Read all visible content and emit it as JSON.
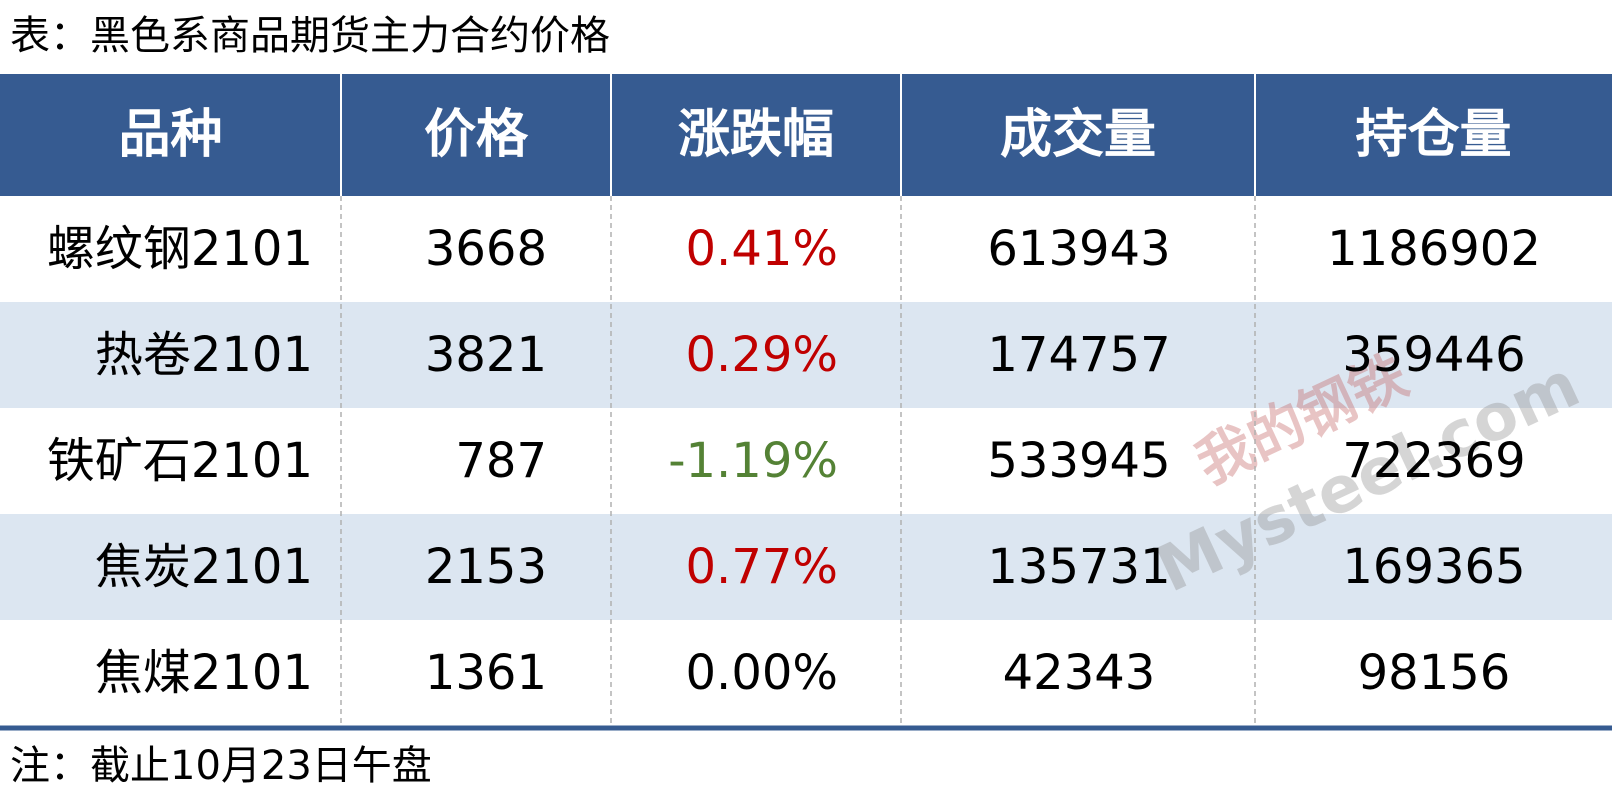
{
  "title": "表：黑色系商品期货主力合约价格",
  "table": {
    "header": [
      "品种",
      "价格",
      "涨跌幅",
      "成交量",
      "持仓量"
    ],
    "rows": [
      [
        "螺纹钢2101",
        3668,
        "0.41%",
        613943,
        1186902
      ],
      [
        "热卷2101",
        3821,
        "0.29%",
        174757,
        359446
      ],
      [
        "铁矿石2101",
        787,
        "-1.19%",
        533945,
        722369
      ],
      [
        "焦炭2101",
        2153,
        "0.77%",
        135731,
        169365
      ],
      [
        "焦煤2101",
        1361,
        "0.00%",
        42343,
        98156
      ]
    ]
  },
  "note": "注：截止10月23日午盘",
  "watermark": {
    "logo": "我的钢铁",
    "text": "Mysteel.com"
  }
}
